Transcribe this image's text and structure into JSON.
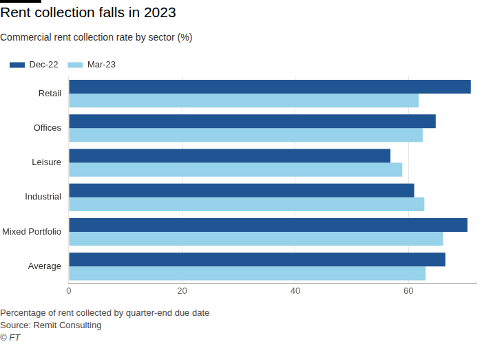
{
  "chart_data": {
    "type": "bar",
    "orientation": "horizontal",
    "title": "Rent collection falls in 2023",
    "subtitle": "Commercial rent collection rate by sector (%)",
    "note": "Percentage of rent collected by quarter-end due date",
    "source": "Source: Remit Consulting",
    "credit": "© FT",
    "categories": [
      "Retail",
      "Offices",
      "Leisure",
      "Industrial",
      "Mixed Portfolio",
      "Average"
    ],
    "series": [
      {
        "name": "Dec-22",
        "color": "#1f5592",
        "values": [
          71.0,
          64.8,
          56.8,
          61.0,
          70.4,
          66.5
        ]
      },
      {
        "name": "Mar-23",
        "color": "#96d2e9",
        "values": [
          61.8,
          62.5,
          58.9,
          62.8,
          66.1,
          63.0
        ]
      }
    ],
    "xlim": [
      0,
      72
    ],
    "xticks": [
      0,
      20,
      40,
      60
    ],
    "grid": true,
    "legend": "top-left"
  }
}
